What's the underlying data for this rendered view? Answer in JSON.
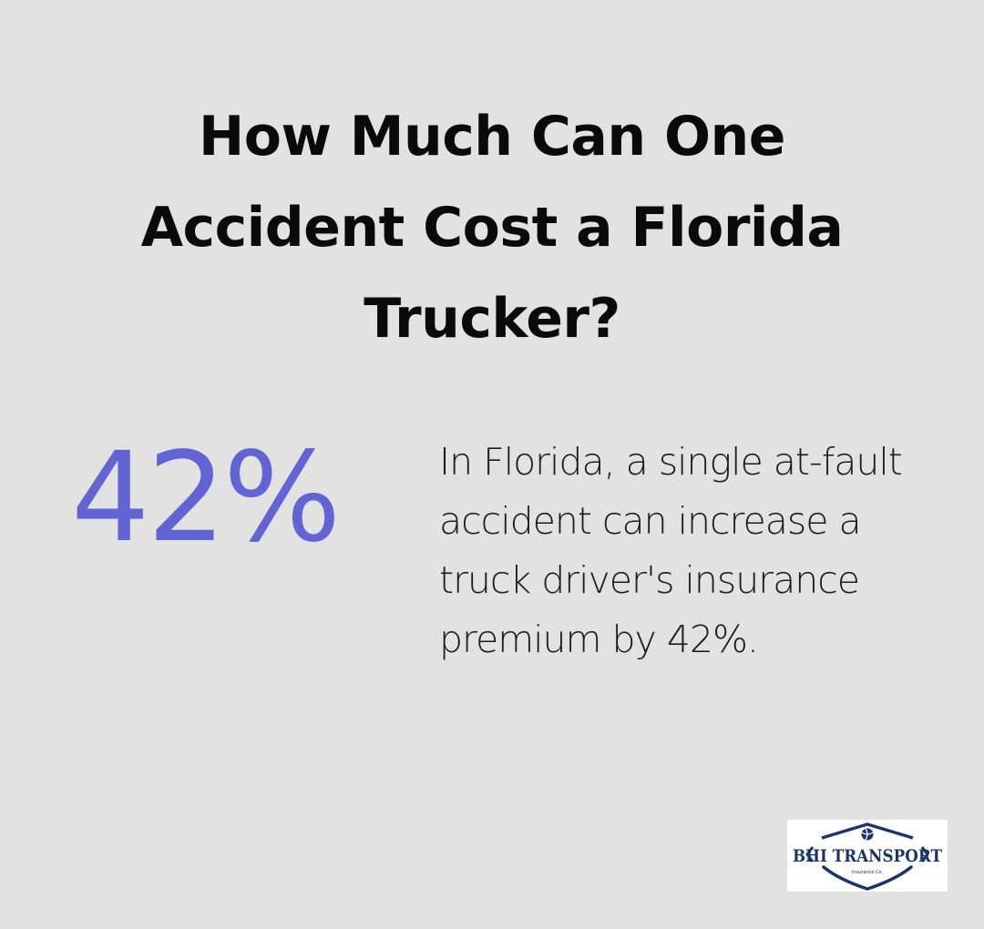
{
  "title": "How Much Can One Accident Cost a Florida Trucker?",
  "stat": {
    "value": "42%"
  },
  "description": "In Florida, a single at-fault accident can increase a truck driver's insurance premium by 42%.",
  "logo": {
    "brand": "BHI TRANSPORT",
    "tagline": "Insurance Co."
  },
  "colors": {
    "background": "#e1e2e1",
    "stat": "#6264d4",
    "logo_navy": "#1b3567"
  }
}
